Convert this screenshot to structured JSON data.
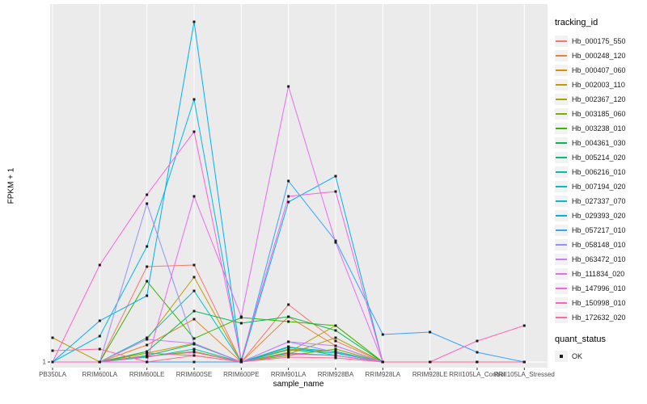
{
  "chart_data": {
    "type": "line",
    "title": "",
    "xlabel": "sample_name",
    "ylabel": "FPKM + 1",
    "y_tick_labels": [
      "1"
    ],
    "ylim": [
      1,
      445
    ],
    "grid": "ggplot-gray-panel-white-gridlines",
    "panel_bg": "#EBEBEB",
    "gridline_color": "#FFFFFF",
    "marker": "black-square",
    "marker_color": "#1a1a1a",
    "legend_position": "right",
    "legend_title": "tracking_id",
    "quant_legend": {
      "title": "quant_status",
      "items": [
        "OK"
      ]
    },
    "categories": [
      "PB350LA",
      "RRIM600LA",
      "RRIM600LE",
      "RRIM600SE",
      "RRIM600PE",
      "RRIM901LA",
      "RRIM928BA",
      "RRIM928LA",
      "RRIM928LE",
      "RRII105LA_Control",
      "RRII105LA_Stressed"
    ],
    "series": [
      {
        "name": "Hb_000175_550",
        "color": "#F8766D",
        "values": [
          1,
          1,
          119,
          121,
          1,
          72,
          27,
          1,
          1,
          1,
          1
        ]
      },
      {
        "name": "Hb_000248_120",
        "color": "#EA8331",
        "values": [
          1,
          1,
          22,
          54,
          1,
          57,
          21,
          1,
          1,
          1,
          1
        ]
      },
      {
        "name": "Hb_000407_060",
        "color": "#D89000",
        "values": [
          1,
          1,
          12,
          24,
          1,
          17,
          14,
          1,
          1,
          1,
          1
        ]
      },
      {
        "name": "Hb_002003_110",
        "color": "#C09B00",
        "values": [
          31,
          1,
          29,
          106,
          1,
          13,
          46,
          1,
          1,
          1,
          1
        ]
      },
      {
        "name": "Hb_002367_120",
        "color": "#A3A500",
        "values": [
          1,
          1,
          12,
          9,
          1,
          11,
          31,
          1,
          1,
          1,
          1
        ]
      },
      {
        "name": "Hb_003185_060",
        "color": "#7CAE00",
        "values": [
          1,
          1,
          8,
          14,
          1,
          9,
          17,
          1,
          1,
          1,
          1
        ]
      },
      {
        "name": "Hb_003238_010",
        "color": "#39B600",
        "values": [
          1,
          1,
          101,
          30,
          56,
          51,
          46,
          1,
          1,
          1,
          1
        ]
      },
      {
        "name": "Hb_004361_030",
        "color": "#00BB4E",
        "values": [
          1,
          1,
          14,
          64,
          49,
          57,
          40,
          1,
          1,
          1,
          1
        ]
      },
      {
        "name": "Hb_005214_020",
        "color": "#00BF7D",
        "values": [
          1,
          1,
          9,
          23,
          1,
          16,
          12,
          1,
          1,
          1,
          1
        ]
      },
      {
        "name": "Hb_006216_010",
        "color": "#00C1A3",
        "values": [
          1,
          1,
          7,
          17,
          1,
          12,
          9,
          1,
          1,
          1,
          1
        ]
      },
      {
        "name": "Hb_007194_020",
        "color": "#00BFC4",
        "values": [
          1,
          1,
          31,
          89,
          1,
          19,
          14,
          1,
          1,
          1,
          1
        ]
      },
      {
        "name": "Hb_027337_070",
        "color": "#00BAE0",
        "values": [
          1,
          33,
          144,
          326,
          1,
          20,
          9,
          1,
          1,
          1,
          1
        ]
      },
      {
        "name": "Hb_029393_020",
        "color": "#00B0F6",
        "values": [
          1,
          52,
          83,
          422,
          1,
          199,
          231,
          1,
          1,
          1,
          1
        ]
      },
      {
        "name": "Hb_057217_010",
        "color": "#35A2FF",
        "values": [
          1,
          1,
          1,
          1,
          1,
          225,
          151,
          35,
          38,
          13,
          1
        ]
      },
      {
        "name": "Hb_058148_010",
        "color": "#9590FF",
        "values": [
          1,
          1,
          197,
          24,
          1,
          26,
          13,
          1,
          1,
          1,
          1
        ]
      },
      {
        "name": "Hb_063472_010",
        "color": "#C77CFF",
        "values": [
          1,
          1,
          29,
          24,
          1,
          26,
          21,
          1,
          1,
          1,
          1
        ]
      },
      {
        "name": "Hb_111834_020",
        "color": "#E76BF3",
        "values": [
          1,
          1,
          1,
          206,
          57,
          342,
          149,
          1,
          1,
          1,
          1
        ]
      },
      {
        "name": "Hb_147996_010",
        "color": "#FA62DB",
        "values": [
          1,
          121,
          208,
          286,
          4,
          206,
          212,
          1,
          1,
          1,
          1
        ]
      },
      {
        "name": "Hb_150998_010",
        "color": "#FF62BC",
        "values": [
          1,
          1,
          8,
          13,
          1,
          11,
          9,
          1,
          1,
          27,
          46
        ]
      },
      {
        "name": "Hb_172632_020",
        "color": "#FF6A98",
        "values": [
          15,
          17,
          1,
          9,
          1,
          7,
          6,
          1,
          1,
          1,
          1
        ]
      }
    ]
  }
}
